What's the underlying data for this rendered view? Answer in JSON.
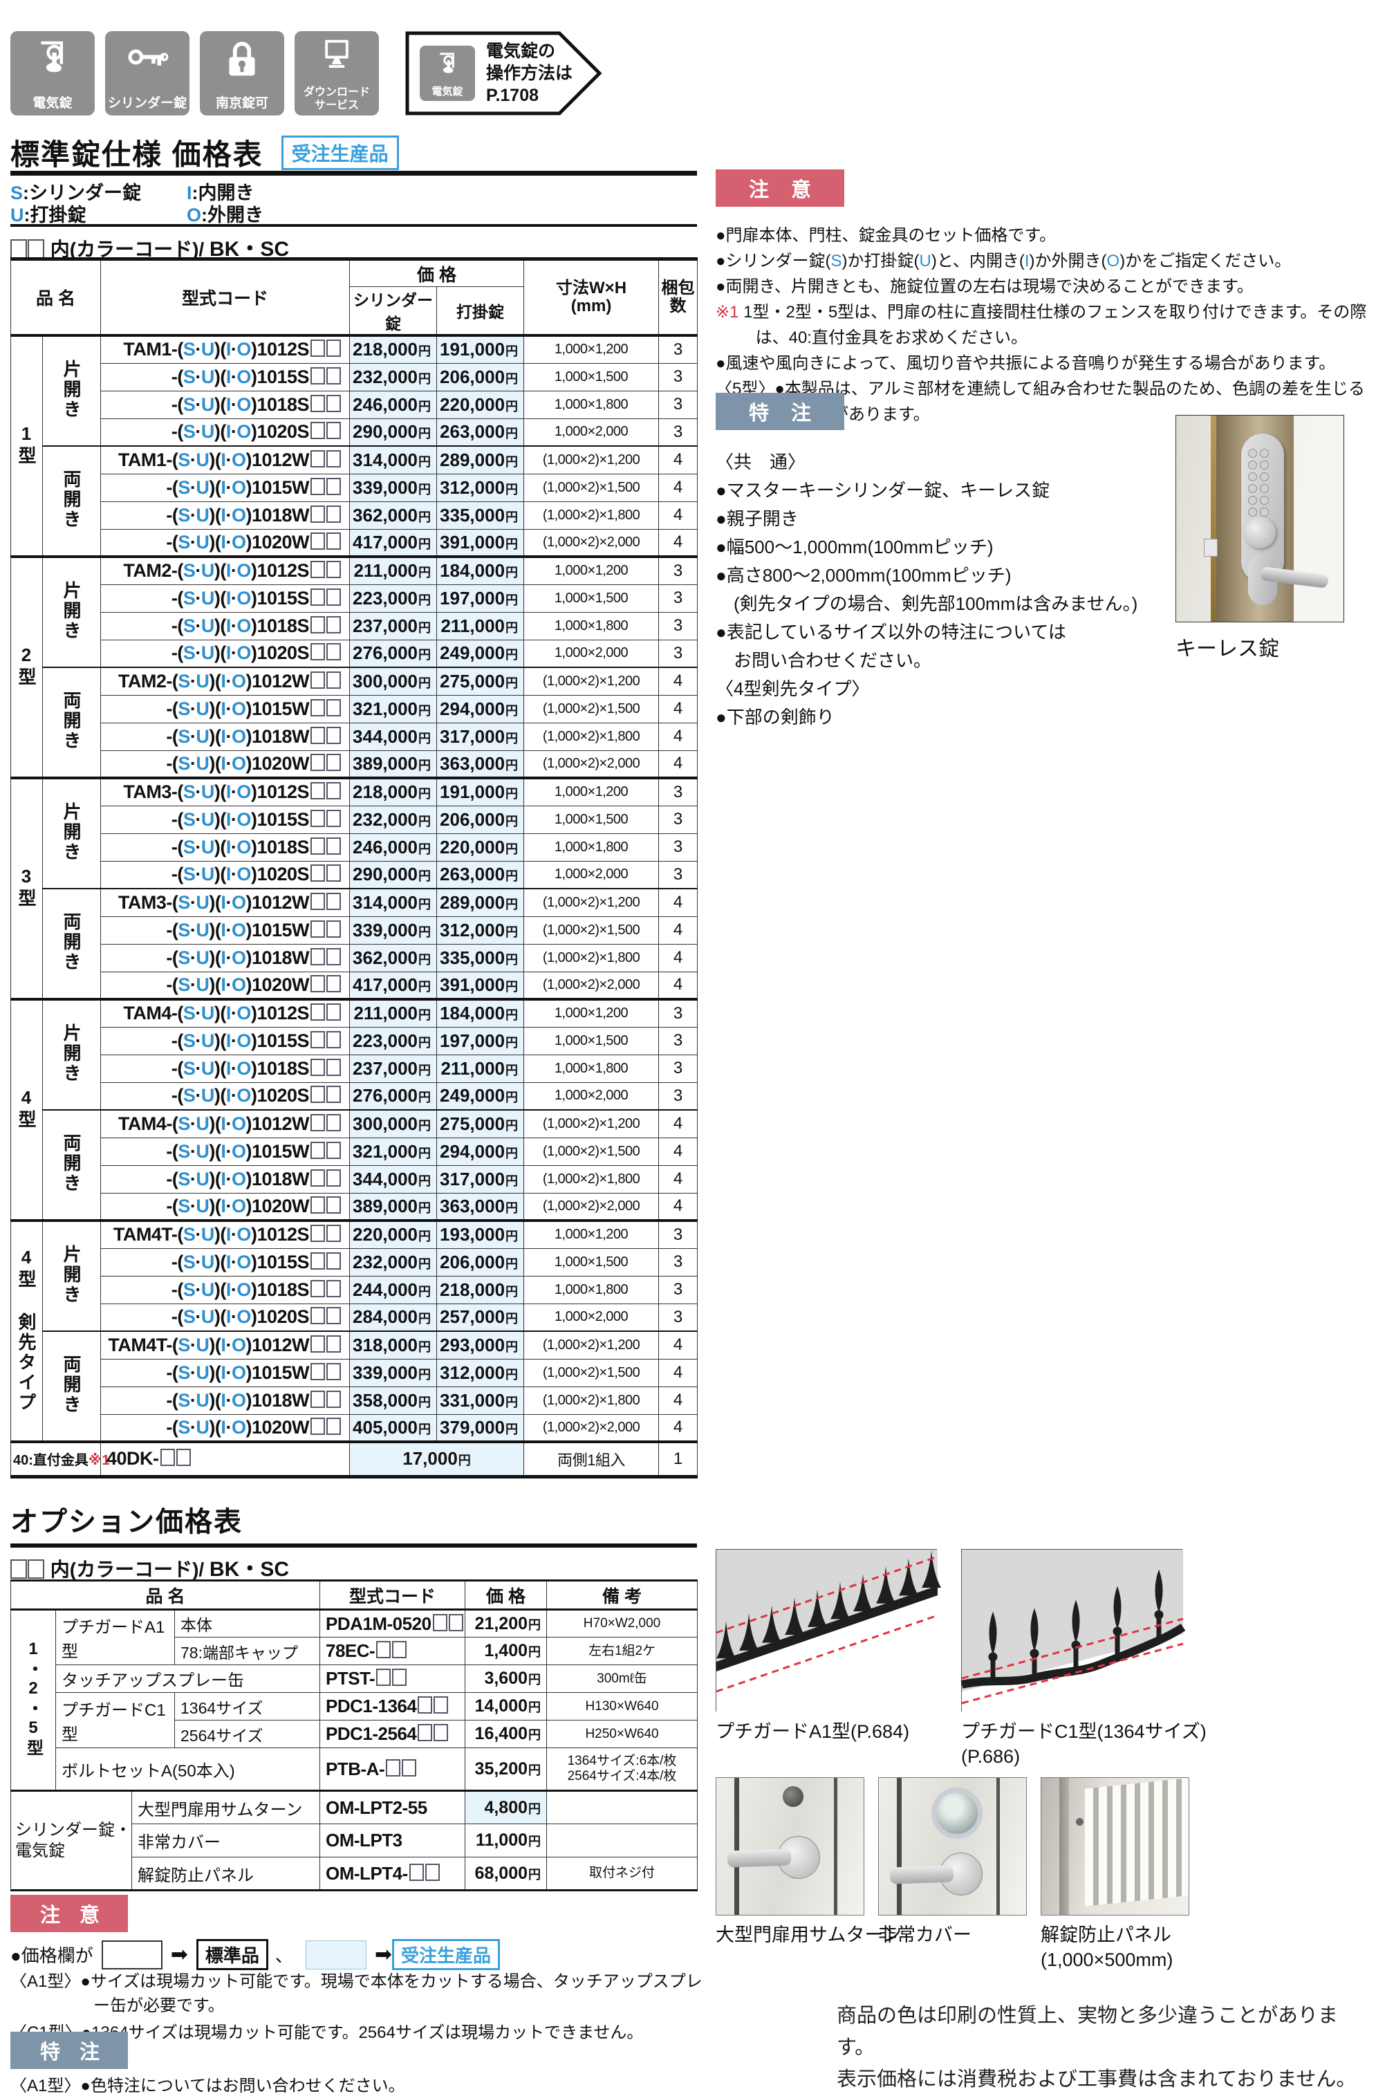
{
  "header_icons": [
    {
      "name": "electric-lock-icon",
      "label": "電気錠"
    },
    {
      "name": "cylinder-lock-icon",
      "label": "シリンダー錠"
    },
    {
      "name": "padlock-icon",
      "label": "南京錠可"
    },
    {
      "name": "download-service-icon",
      "label": "ダウンロード\nサービス"
    }
  ],
  "elock_badge": {
    "icon_label": "電気錠",
    "line1": "電気錠の",
    "line2": "操作方法は",
    "page": "P.1708"
  },
  "title": {
    "text": "標準錠仕様 価格表",
    "badge": "受注生産品"
  },
  "legend": {
    "rows": [
      [
        {
          "key": "S",
          "label": ":シリンダー錠"
        },
        {
          "key": "I",
          "label": ":内開き"
        }
      ],
      [
        {
          "key": "U",
          "label": ":打掛錠"
        },
        {
          "key": "O",
          "label": ":外開き"
        }
      ]
    ]
  },
  "colorcode": {
    "boxes": "□□",
    "text": "内(カラーコード)/",
    "code": "BK・SC"
  },
  "main_table": {
    "headers": {
      "name": "品 名",
      "model": "型式コード",
      "price": "価 格",
      "cyl": "シリンダー錠",
      "latch": "打掛錠",
      "size1": "寸法W×H",
      "size2": "(mm)",
      "pack1": "梱包",
      "pack2": "数",
      "yen": "円"
    },
    "su_io": "(S·U)(I·O)",
    "groups": [
      {
        "type": "1型",
        "sub": [
          {
            "opening": "片開き",
            "rows": [
              [
                "TAM1-@1012S□□",
                "218,000",
                "191,000",
                "1,000×1,200",
                "3"
              ],
              [
                "-@1015S□□",
                "232,000",
                "206,000",
                "1,000×1,500",
                "3"
              ],
              [
                "-@1018S□□",
                "246,000",
                "220,000",
                "1,000×1,800",
                "3"
              ],
              [
                "-@1020S□□",
                "290,000",
                "263,000",
                "1,000×2,000",
                "3"
              ]
            ]
          },
          {
            "opening": "両開き",
            "rows": [
              [
                "TAM1-@1012W□□",
                "314,000",
                "289,000",
                "(1,000×2)×1,200",
                "4"
              ],
              [
                "-@1015W□□",
                "339,000",
                "312,000",
                "(1,000×2)×1,500",
                "4"
              ],
              [
                "-@1018W□□",
                "362,000",
                "335,000",
                "(1,000×2)×1,800",
                "4"
              ],
              [
                "-@1020W□□",
                "417,000",
                "391,000",
                "(1,000×2)×2,000",
                "4"
              ]
            ]
          }
        ]
      },
      {
        "type": "2型",
        "sub": [
          {
            "opening": "片開き",
            "rows": [
              [
                "TAM2-@1012S□□",
                "211,000",
                "184,000",
                "1,000×1,200",
                "3"
              ],
              [
                "-@1015S□□",
                "223,000",
                "197,000",
                "1,000×1,500",
                "3"
              ],
              [
                "-@1018S□□",
                "237,000",
                "211,000",
                "1,000×1,800",
                "3"
              ],
              [
                "-@1020S□□",
                "276,000",
                "249,000",
                "1,000×2,000",
                "3"
              ]
            ]
          },
          {
            "opening": "両開き",
            "rows": [
              [
                "TAM2-@1012W□□",
                "300,000",
                "275,000",
                "(1,000×2)×1,200",
                "4"
              ],
              [
                "-@1015W□□",
                "321,000",
                "294,000",
                "(1,000×2)×1,500",
                "4"
              ],
              [
                "-@1018W□□",
                "344,000",
                "317,000",
                "(1,000×2)×1,800",
                "4"
              ],
              [
                "-@1020W□□",
                "389,000",
                "363,000",
                "(1,000×2)×2,000",
                "4"
              ]
            ]
          }
        ]
      },
      {
        "type": "3型",
        "sub": [
          {
            "opening": "片開き",
            "rows": [
              [
                "TAM3-@1012S□□",
                "218,000",
                "191,000",
                "1,000×1,200",
                "3"
              ],
              [
                "-@1015S□□",
                "232,000",
                "206,000",
                "1,000×1,500",
                "3"
              ],
              [
                "-@1018S□□",
                "246,000",
                "220,000",
                "1,000×1,800",
                "3"
              ],
              [
                "-@1020S□□",
                "290,000",
                "263,000",
                "1,000×2,000",
                "3"
              ]
            ]
          },
          {
            "opening": "両開き",
            "rows": [
              [
                "TAM3-@1012W□□",
                "314,000",
                "289,000",
                "(1,000×2)×1,200",
                "4"
              ],
              [
                "-@1015W□□",
                "339,000",
                "312,000",
                "(1,000×2)×1,500",
                "4"
              ],
              [
                "-@1018W□□",
                "362,000",
                "335,000",
                "(1,000×2)×1,800",
                "4"
              ],
              [
                "-@1020W□□",
                "417,000",
                "391,000",
                "(1,000×2)×2,000",
                "4"
              ]
            ]
          }
        ]
      },
      {
        "type": "4型",
        "sub": [
          {
            "opening": "片開き",
            "rows": [
              [
                "TAM4-@1012S□□",
                "211,000",
                "184,000",
                "1,000×1,200",
                "3"
              ],
              [
                "-@1015S□□",
                "223,000",
                "197,000",
                "1,000×1,500",
                "3"
              ],
              [
                "-@1018S□□",
                "237,000",
                "211,000",
                "1,000×1,800",
                "3"
              ],
              [
                "-@1020S□□",
                "276,000",
                "249,000",
                "1,000×2,000",
                "3"
              ]
            ]
          },
          {
            "opening": "両開き",
            "rows": [
              [
                "TAM4-@1012W□□",
                "300,000",
                "275,000",
                "(1,000×2)×1,200",
                "4"
              ],
              [
                "-@1015W□□",
                "321,000",
                "294,000",
                "(1,000×2)×1,500",
                "4"
              ],
              [
                "-@1018W□□",
                "344,000",
                "317,000",
                "(1,000×2)×1,800",
                "4"
              ],
              [
                "-@1020W□□",
                "389,000",
                "363,000",
                "(1,000×2)×2,000",
                "4"
              ]
            ]
          }
        ]
      },
      {
        "type": "4型 剣先タイプ",
        "sub": [
          {
            "opening": "片開き",
            "rows": [
              [
                "TAM4T-@1012S□□",
                "220,000",
                "193,000",
                "1,000×1,200",
                "3"
              ],
              [
                "-@1015S□□",
                "232,000",
                "206,000",
                "1,000×1,500",
                "3"
              ],
              [
                "-@1018S□□",
                "244,000",
                "218,000",
                "1,000×1,800",
                "3"
              ],
              [
                "-@1020S□□",
                "284,000",
                "257,000",
                "1,000×2,000",
                "3"
              ]
            ]
          },
          {
            "opening": "両開き",
            "rows": [
              [
                "TAM4T-@1012W□□",
                "318,000",
                "293,000",
                "(1,000×2)×1,200",
                "4"
              ],
              [
                "-@1015W□□",
                "339,000",
                "312,000",
                "(1,000×2)×1,500",
                "4"
              ],
              [
                "-@1018W□□",
                "358,000",
                "331,000",
                "(1,000×2)×1,800",
                "4"
              ],
              [
                "-@1020W□□",
                "405,000",
                "379,000",
                "(1,000×2)×2,000",
                "4"
              ]
            ]
          }
        ]
      }
    ],
    "footer": {
      "label": "40:直付金具",
      "sup": "※1",
      "code": "40DK-□□",
      "price": "17,000",
      "size": "両側1組入",
      "pack": "1"
    }
  },
  "notice1": {
    "header": "注 意",
    "items": [
      {
        "hang": 1,
        "segs": [
          [
            "●門扉本体、門柱、錠金具のセット価格です。",
            ""
          ]
        ]
      },
      {
        "hang": 1,
        "segs": [
          [
            "●シリンダー錠(",
            ""
          ],
          [
            "S",
            "b"
          ],
          [
            ")か打掛錠(",
            ""
          ],
          [
            "U",
            "b"
          ],
          [
            ")と、内開き(",
            ""
          ],
          [
            "I",
            "b"
          ],
          [
            ")か外開き(",
            ""
          ],
          [
            "O",
            "b"
          ],
          [
            ")かをご指定ください。",
            ""
          ]
        ]
      },
      {
        "hang": 1,
        "segs": [
          [
            "●両開き、片開きとも、施錠位置の左右は現場で決めることができます。",
            ""
          ]
        ]
      },
      {
        "hang": 2.4,
        "segs": [
          [
            "※1",
            "r"
          ],
          [
            " 1型・2型・5型は、門扉の柱に直接間柱仕様のフェンスを取り付けできます。その際は、40:直付金具をお求めください。",
            ""
          ]
        ]
      },
      {
        "hang": 1,
        "segs": [
          [
            "●風速や風向きによって、風切り音や共振による音鳴りが発生する場合があります。",
            ""
          ]
        ]
      },
      {
        "hang": 5,
        "segs": [
          [
            "〈5型〉●本製品は、アルミ部材を連続して組み合わせた製品のため、色調の差を生じる場合があります。",
            ""
          ]
        ]
      }
    ]
  },
  "custom1": {
    "header": "特 注",
    "lines": [
      {
        "t": "〈共　通〉"
      },
      {
        "t": "●マスターキーシリンダー錠、キーレス錠"
      },
      {
        "t": "●親子開き"
      },
      {
        "t": "●幅500〜1,000mm(100mmピッチ)"
      },
      {
        "t": "●高さ800〜2,000mm(100mmピッチ)"
      },
      {
        "t": "(剣先タイプの場合、剣先部100mmは含みません。)",
        "ind": 1
      },
      {
        "t": "●表記しているサイズ以外の特注については"
      },
      {
        "t": "お問い合わせください。",
        "ind": 1
      },
      {
        "t": "〈4型剣先タイプ〉"
      },
      {
        "t": "●下部の剣飾り"
      }
    ]
  },
  "keyless_caption": "キーレス錠",
  "options": {
    "title": "オプション価格表",
    "headers": {
      "name": "品 名",
      "model": "型式コード",
      "price": "価 格",
      "note": "備 考"
    },
    "group1_label": "1・2・5型",
    "group2_label": "シリンダー錠・\n電気錠",
    "group1_rows": [
      {
        "label": "プチガードA1型",
        "label_rows": 2,
        "variant": "本体",
        "code": "PDA1M-0520□□",
        "price": "21,200",
        "note": "H70×W2,000"
      },
      {
        "variant": "78:端部キャップ",
        "code": "78EC-□□",
        "price": "1,400",
        "note": "左右1組2ケ"
      },
      {
        "name_full": "タッチアップスプレー缶",
        "code": "PTST-□□",
        "price": "3,600",
        "note": "300mℓ缶"
      },
      {
        "label": "プチガードC1型",
        "label_rows": 2,
        "variant": "1364サイズ",
        "code": "PDC1-1364□□",
        "price": "14,000",
        "note": "H130×W640"
      },
      {
        "variant": "2564サイズ",
        "code": "PDC1-2564□□",
        "price": "16,400",
        "note": "H250×W640"
      },
      {
        "name_full": "ボルトセットA(50本入)",
        "code": "PTB-A-□□",
        "price": "35,200",
        "note2": [
          "1364サイズ:6本/枚",
          "2564サイズ:4本/枚"
        ],
        "tall": true
      }
    ],
    "group2_rows": [
      {
        "name": "大型門扉用サムターン",
        "code": "OM-LPT2-55",
        "price": "4,800",
        "blue": true,
        "note": ""
      },
      {
        "name": "非常カバー",
        "code": "OM-LPT3",
        "price": "11,000",
        "note": ""
      },
      {
        "name": "解錠防止パネル",
        "code": "OM-LPT4-□□",
        "price": "68,000",
        "note": "取付ネジ付"
      }
    ]
  },
  "option_photos": {
    "a1_caption": "プチガードA1型(P.684)",
    "c1_caption_1": "プチガードC1型(1364サイズ)",
    "c1_caption_2": "(P.686)",
    "thumb_caption": "大型門扉用サムターン",
    "cover_caption": "非常カバー",
    "panel_caption_1": "解錠防止パネル",
    "panel_caption_2": "(1,000×500mm)"
  },
  "notice2": {
    "header": "注 意",
    "legend": {
      "pre": "●価格欄が",
      "arrow": "➡",
      "std": "標準品",
      "sep": "、",
      "order": "受注生産品"
    },
    "notes": [
      {
        "hang": 5,
        "segs": [
          [
            "〈A1型〉●サイズは現場カット可能です。現場で本体をカットする場合、タッチアップスプレー缶が必要です。",
            ""
          ]
        ]
      },
      {
        "hang": 5,
        "segs": [
          [
            "〈C1型〉●1364サイズは現場カット可能です。2564サイズは現場カットできません。",
            ""
          ]
        ]
      }
    ]
  },
  "custom2": {
    "header": "特 注",
    "note_segs": [
      [
        "〈A1型〉●色特注についてはお問い合わせください。",
        ""
      ]
    ]
  },
  "disclaimer": [
    "商品の色は印刷の性質上、実物と多少違うことがあります。",
    "表示価格には消費税および工事費は含まれておりません。"
  ]
}
